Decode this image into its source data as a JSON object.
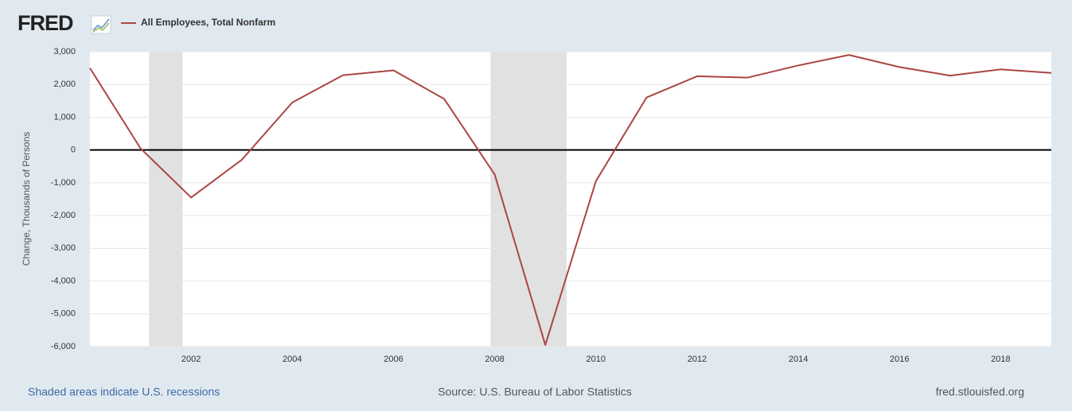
{
  "chart_data": {
    "type": "line",
    "logo": "FRED",
    "y_label": "Change, Thousands of Persons",
    "x": [
      2000,
      2001,
      2002,
      2003,
      2004,
      2005,
      2006,
      2007,
      2008,
      2009,
      2010,
      2011,
      2012,
      2013,
      2014,
      2015,
      2016,
      2017,
      2018,
      2019
    ],
    "series": [
      {
        "name": "All Employees, Total Nonfarm",
        "color": "#aa4643",
        "values": [
          2500,
          50,
          -1450,
          -300,
          1450,
          2280,
          2430,
          1560,
          -750,
          -5950,
          -950,
          1600,
          2250,
          2210,
          2580,
          2900,
          2530,
          2270,
          2460,
          2350
        ]
      }
    ],
    "recessions": [
      [
        2001.17,
        2001.83
      ],
      [
        2007.92,
        2009.42
      ]
    ],
    "xlim": [
      2000,
      2019
    ],
    "xticks": [
      2002,
      2004,
      2006,
      2008,
      2010,
      2012,
      2014,
      2016,
      2018
    ],
    "ylim": [
      -6000,
      3000
    ],
    "yticks": [
      {
        "value": -6000,
        "label": "-6,000"
      },
      {
        "value": -5000,
        "label": "-5,000"
      },
      {
        "value": -4000,
        "label": "-4,000"
      },
      {
        "value": -3000,
        "label": "-3,000"
      },
      {
        "value": -2000,
        "label": "-2,000"
      },
      {
        "value": -1000,
        "label": "-1,000"
      },
      0,
      {
        "value": 1000,
        "label": "1,000"
      },
      {
        "value": 2000,
        "label": "2,000"
      },
      {
        "value": 3000,
        "label": "3,000"
      }
    ],
    "grid": true,
    "footer_left": "Shaded areas indicate U.S. recessions",
    "footer_center": "Source: U.S. Bureau of Labor Statistics",
    "footer_right": "fred.stlouisfed.org"
  }
}
